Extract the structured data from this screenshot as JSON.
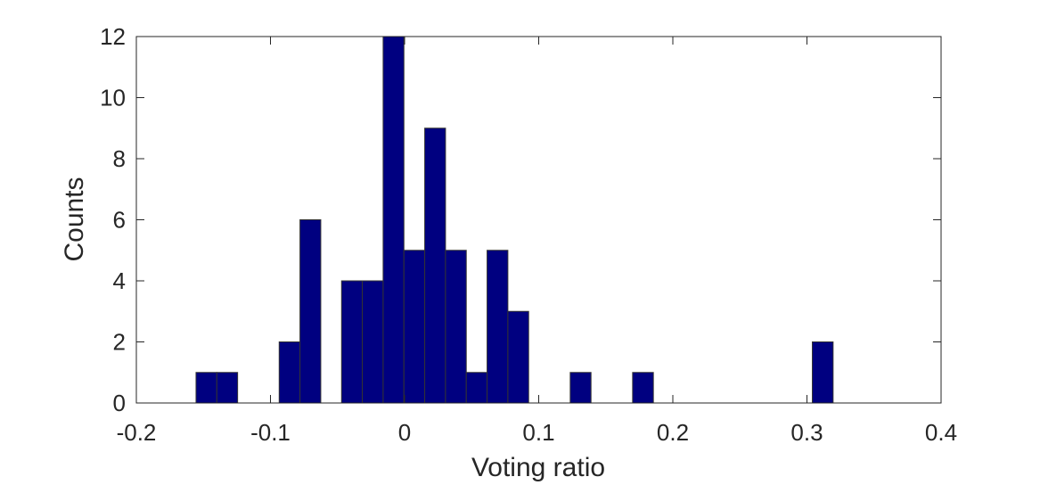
{
  "chart_data": {
    "type": "bar",
    "title": "",
    "xlabel": "Voting ratio",
    "ylabel": "Counts",
    "xlim": [
      -0.2,
      0.4
    ],
    "ylim": [
      0,
      12
    ],
    "xticks": [
      "-0.2",
      "-0.1",
      "0",
      "0.1",
      "0.2",
      "0.3",
      "0.4"
    ],
    "yticks": [
      "0",
      "2",
      "4",
      "6",
      "8",
      "10",
      "12"
    ],
    "bin_width": 0.0155,
    "bar_color": "#000080",
    "bins": [
      {
        "x0": -0.1555,
        "count": 1
      },
      {
        "x0": -0.14,
        "count": 1
      },
      {
        "x0": -0.0935,
        "count": 2
      },
      {
        "x0": -0.078,
        "count": 6
      },
      {
        "x0": -0.047,
        "count": 4
      },
      {
        "x0": -0.0315,
        "count": 4
      },
      {
        "x0": -0.016,
        "count": 12
      },
      {
        "x0": -0.0005,
        "count": 5
      },
      {
        "x0": 0.015,
        "count": 9
      },
      {
        "x0": 0.0305,
        "count": 5
      },
      {
        "x0": 0.046,
        "count": 1
      },
      {
        "x0": 0.0615,
        "count": 5
      },
      {
        "x0": 0.077,
        "count": 3
      },
      {
        "x0": 0.1235,
        "count": 1
      },
      {
        "x0": 0.17,
        "count": 1
      },
      {
        "x0": 0.304,
        "count": 2
      }
    ],
    "grid": false,
    "legend": false
  }
}
